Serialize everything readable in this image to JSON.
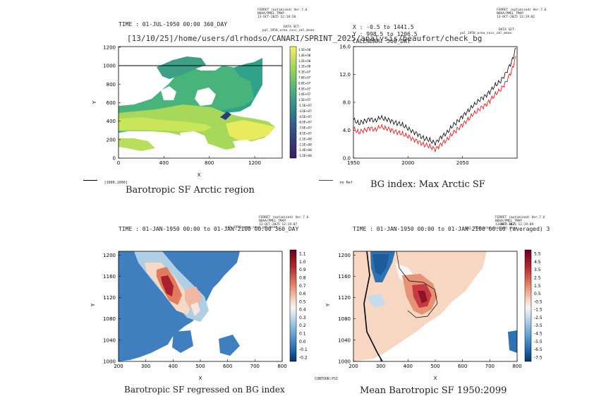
{
  "header": {
    "path": "[13/10/25]/home/users/dlrhodso/CANARI/SPRINT_2025/analysis/beaufort/check_bg"
  },
  "ferret_stamps": [
    {
      "line1": "FERRET (optimized) Ver.7.6",
      "line2": "NOAA/PMEL TMAP",
      "line3": "13-OCT-2025 12:18:58"
    },
    {
      "line1": "FERRET (optimized) Ver.7.6",
      "line2": "NOAA/PMEL TMAP",
      "line3": "13-OCT-2025 12:19:02"
    },
    {
      "line1": "FERRET (optimized) Ver.7.6",
      "line2": "NOAA/PMEL TMAP",
      "line3": "13-OCT-2025 12:19:07"
    },
    {
      "line1": "FERRET (optimized) Ver.7.6",
      "line2": "NOAA/PMEL TMAP",
      "line3": "13-OCT-2025 12:19:09"
    }
  ],
  "datasets": {
    "p1": {
      "label": "DATA SET:",
      "name": "pal_1950_area_socs_cml_mean"
    },
    "p2": {
      "label": "DATA SET:",
      "name": "pal_1950_area_socs_cml_mean"
    },
    "p3": {
      "name": "pal_1950_area_socs_cml_mean"
    },
    "p4": {
      "label": "DATA SET:",
      "name": "pal_1950_area_socs_cml_mean"
    }
  },
  "panel1": {
    "time": "TIME : 01-JUL-1950 00:00 360_DAY",
    "xlabel": "X",
    "ylabel": "Y",
    "title": "Barotropic SF Arctic region",
    "legend": "[1000,1000]",
    "colorbar": [
      "1.5E+08",
      "1.4E+08",
      "1.2E+08",
      "1.1E+08",
      "9.1E+07",
      "7.6E+07",
      "6.0E+07",
      "4.5E+07",
      "3.0E+07",
      "1.5E+07",
      "-1.5E+07",
      "-3.0E+07",
      "-4.5E+07",
      "-6.0E+07",
      "-7.6E+07",
      "-9.1E+07",
      "-1.1E+08",
      "-1.2E+08",
      "-1.4E+08",
      "-1.5E+08"
    ]
  },
  "panel2": {
    "info1": "X : -0.5 to 1441.5",
    "info2": "Y : 998.5 to 1206.5",
    "info3": "CALENDAR: 360_DAY",
    "title": "BG index: Max Arctic SF",
    "legend": "no Ref"
  },
  "panel3": {
    "time": "TIME : 01-JAN-1950 00:00 to 01-JAN-2100 00:00 360_DAY",
    "xlabel": "X",
    "ylabel": "Y",
    "title": "Barotropic SF regressed on BG index",
    "colorbar": [
      "1.1",
      "1.0",
      "0.9",
      "0.8",
      "0.7",
      "0.6",
      "0.5",
      "0.4",
      "0.3",
      "0.2",
      "0.1",
      "0.0",
      "-0.1",
      "-0.2"
    ]
  },
  "panel4": {
    "time": "TIME : 01-JAN-1950 00:00 to 01-JAN-2100 00:00 (averaged) 3",
    "xlabel": "X",
    "ylabel": "Y",
    "title": "Mean Barotropic SF 1950:2099",
    "contour": "CONTOUR:PSI",
    "colorbar": [
      "5.5",
      "4.5",
      "3.5",
      "2.5",
      "1.5",
      "0.5",
      "-0.5",
      "-1.5",
      "-2.5",
      "-3.5",
      "-4.5",
      "-5.5",
      "-6.5",
      "-7.5"
    ]
  },
  "chart_data": [
    {
      "type": "heatmap",
      "title": "Barotropic SF Arctic region",
      "xlabel": "X",
      "ylabel": "Y",
      "xlim": [
        0,
        1442
      ],
      "ylim": [
        0,
        1207
      ],
      "x_ticks": [
        "0",
        "400",
        "800",
        "1200"
      ],
      "y_ticks": [
        "0",
        "200",
        "400",
        "600",
        "800",
        "1000",
        "1200"
      ],
      "hline_y": 1000
    },
    {
      "type": "line",
      "title": "BG index: Max Arctic SF",
      "xlim": [
        1950,
        2100
      ],
      "ylim": [
        0,
        16
      ],
      "x_ticks": [
        "1950",
        "2000",
        "2050"
      ],
      "y_ticks": [
        "0.0",
        "4.0",
        "8.0",
        "12.0",
        "16.0"
      ],
      "x": [
        1950,
        1955,
        1960,
        1965,
        1970,
        1975,
        1980,
        1985,
        1990,
        1995,
        2000,
        2005,
        2010,
        2015,
        2020,
        2025,
        2030,
        2035,
        2040,
        2045,
        2050,
        2055,
        2060,
        2065,
        2070,
        2075,
        2080,
        2085,
        2090,
        2095,
        2099
      ],
      "series": [
        {
          "values": [
            5.5,
            5.0,
            5.3,
            5.6,
            5.4,
            5.8,
            5.6,
            5.3,
            5.0,
            4.8,
            4.2,
            3.8,
            3.3,
            2.8,
            2.6,
            2.1,
            3.0,
            3.5,
            4.5,
            5.2,
            6.0,
            6.8,
            7.5,
            8.3,
            8.8,
            9.5,
            10.5,
            11.0,
            12.3,
            13.8,
            15.8
          ],
          "color": "#000000"
        },
        {
          "name": "no Ref",
          "values": [
            4.2,
            3.7,
            4.0,
            4.3,
            4.1,
            4.5,
            4.3,
            4.0,
            3.7,
            3.5,
            3.1,
            2.7,
            2.3,
            1.9,
            1.7,
            1.2,
            2.0,
            2.5,
            3.4,
            4.1,
            4.8,
            5.6,
            6.3,
            7.0,
            7.5,
            8.2,
            9.2,
            9.8,
            11.0,
            12.5,
            14.6
          ],
          "color": "#ff0000"
        }
      ]
    },
    {
      "type": "heatmap",
      "title": "Barotropic SF regressed on BG index",
      "xlabel": "X",
      "ylabel": "Y",
      "xlim": [
        200,
        800
      ],
      "ylim": [
        1000,
        1207
      ],
      "x_ticks": [
        "200",
        "300",
        "400",
        "500",
        "600",
        "700",
        "800"
      ],
      "y_ticks": [
        "1000",
        "1040",
        "1080",
        "1120",
        "1160",
        "1200"
      ]
    },
    {
      "type": "heatmap",
      "title": "Mean Barotropic SF 1950:2099",
      "xlabel": "X",
      "ylabel": "Y",
      "xlim": [
        200,
        800
      ],
      "ylim": [
        1000,
        1207
      ],
      "x_ticks": [
        "200",
        "300",
        "400",
        "500",
        "600",
        "700",
        "800"
      ],
      "y_ticks": [
        "1000",
        "1040",
        "1080",
        "1120",
        "1160",
        "1200"
      ]
    }
  ]
}
